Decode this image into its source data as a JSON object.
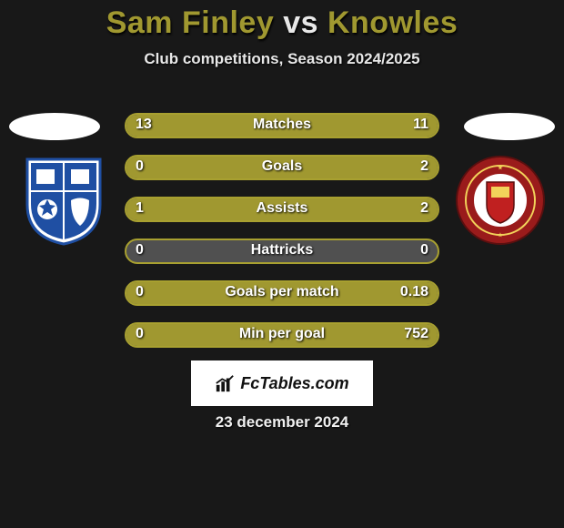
{
  "title": {
    "player1": "Sam Finley",
    "vs": "vs",
    "player2": "Knowles"
  },
  "subtitle": "Club competitions, Season 2024/2025",
  "colors": {
    "accent": "#a09830",
    "accent_border": "#a8a030",
    "track": "#505050",
    "background": "#181818",
    "text": "#ffffff",
    "watermark_bg": "#ffffff",
    "watermark_text": "#111111"
  },
  "crest_left": {
    "name": "Tranmere Rovers",
    "primary": "#1f4fa3",
    "secondary": "#ffffff"
  },
  "crest_right": {
    "name": "Accrington Stanley",
    "primary": "#9a1b1b",
    "secondary": "#f2d25a"
  },
  "bars": [
    {
      "label": "Matches",
      "left": "13",
      "right": "11",
      "left_pct": 54,
      "right_pct": 46
    },
    {
      "label": "Goals",
      "left": "0",
      "right": "2",
      "left_pct": 0,
      "right_pct": 100
    },
    {
      "label": "Assists",
      "left": "1",
      "right": "2",
      "left_pct": 33,
      "right_pct": 67
    },
    {
      "label": "Hattricks",
      "left": "0",
      "right": "0",
      "left_pct": 0,
      "right_pct": 0
    },
    {
      "label": "Goals per match",
      "left": "0",
      "right": "0.18",
      "left_pct": 0,
      "right_pct": 100
    },
    {
      "label": "Min per goal",
      "left": "0",
      "right": "752",
      "left_pct": 0,
      "right_pct": 100
    }
  ],
  "watermark": "FcTables.com",
  "date": "23 december 2024"
}
